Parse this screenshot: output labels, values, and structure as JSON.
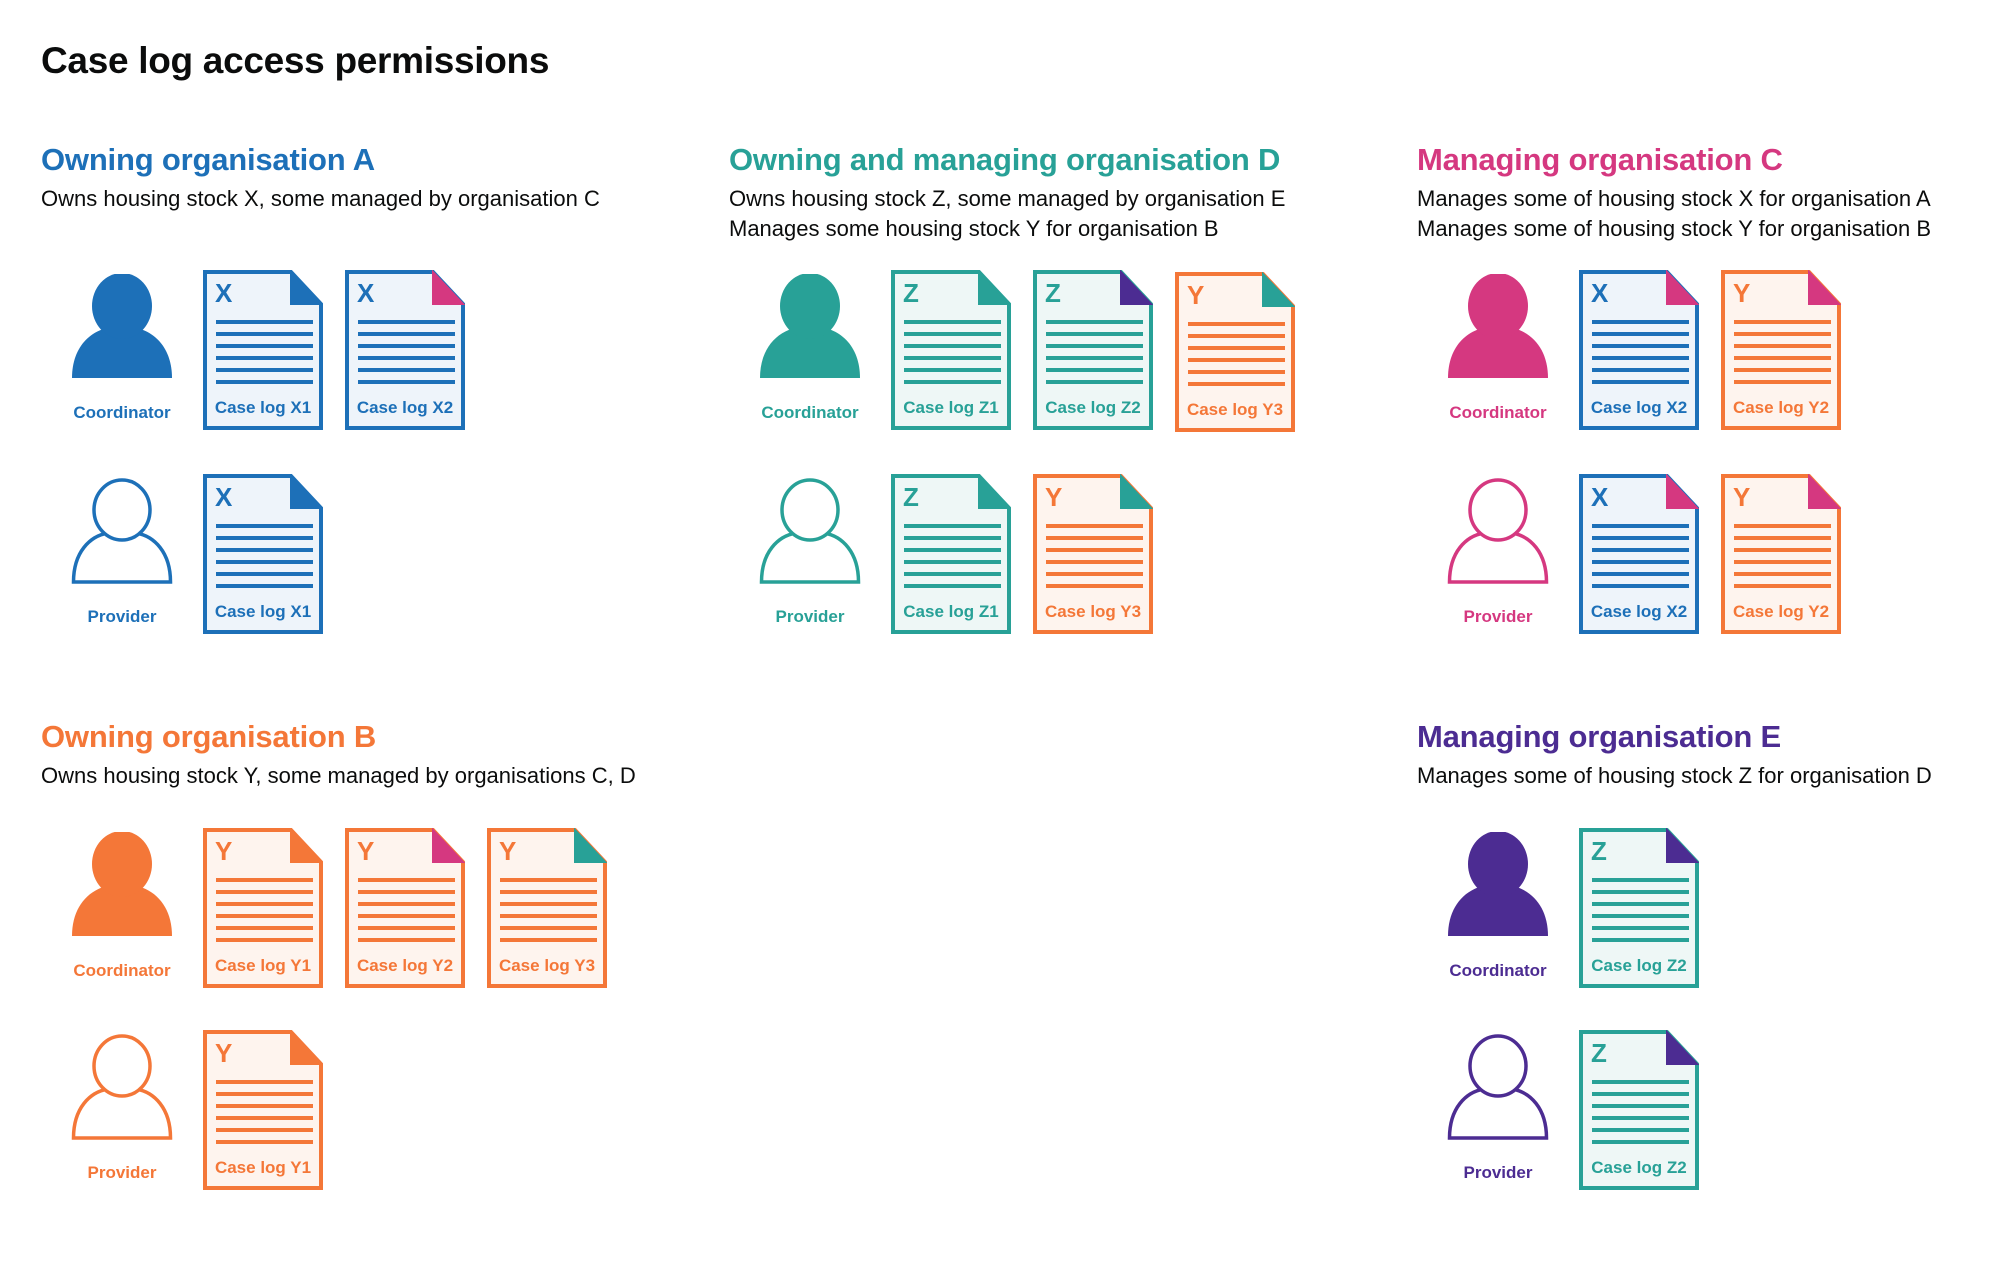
{
  "title": "Case log access permissions",
  "colors": {
    "blue": "#1d70b8",
    "teal": "#28a197",
    "pink": "#d53880",
    "orange": "#f47738",
    "purple": "#4c2c92"
  },
  "stock_colors": {
    "X": "blue",
    "Y": "orange",
    "Z": "teal"
  },
  "sections": [
    {
      "heading": "Owning organisation A",
      "color": "blue",
      "desc": [
        "Owns housing stock X, some managed by organisation C"
      ],
      "roles": [
        {
          "role": "Coordinator",
          "filled": true,
          "docs": [
            {
              "stock": "X",
              "label": "Case log X1",
              "corner": "blue"
            },
            {
              "stock": "X",
              "label": "Case log X2",
              "corner": "pink"
            }
          ]
        },
        {
          "role": "Provider",
          "filled": false,
          "docs": [
            {
              "stock": "X",
              "label": "Case log X1",
              "corner": "blue"
            }
          ]
        }
      ]
    },
    {
      "heading": "Owning and managing organisation D",
      "color": "teal",
      "desc": [
        "Owns housing stock Z, some managed by organisation E",
        "Manages some housing stock Y for organisation B"
      ],
      "roles": [
        {
          "role": "Coordinator",
          "filled": true,
          "docs": [
            {
              "stock": "Z",
              "label": "Case log Z1",
              "corner": "teal"
            },
            {
              "stock": "Z",
              "label": "Case log Z2",
              "corner": "purple"
            },
            {
              "stock": "Y",
              "label": "Case log Y3",
              "corner": "teal"
            }
          ]
        },
        {
          "role": "Provider",
          "filled": false,
          "docs": [
            {
              "stock": "Z",
              "label": "Case log Z1",
              "corner": "teal"
            },
            {
              "stock": "Y",
              "label": "Case log Y3",
              "corner": "teal"
            }
          ]
        }
      ]
    },
    {
      "heading": "Managing organisation C",
      "color": "pink",
      "desc": [
        "Manages some of housing stock X for organisation A",
        "Manages some of housing stock Y for organisation B"
      ],
      "roles": [
        {
          "role": "Coordinator",
          "filled": true,
          "docs": [
            {
              "stock": "X",
              "label": "Case log X2",
              "corner": "pink"
            },
            {
              "stock": "Y",
              "label": "Case log Y2",
              "corner": "pink"
            }
          ]
        },
        {
          "role": "Provider",
          "filled": false,
          "docs": [
            {
              "stock": "X",
              "label": "Case log X2",
              "corner": "pink"
            },
            {
              "stock": "Y",
              "label": "Case log Y2",
              "corner": "pink"
            }
          ]
        }
      ]
    },
    {
      "heading": "Owning organisation B",
      "color": "orange",
      "desc": [
        "Owns housing stock Y, some managed by organisations C, D"
      ],
      "roles": [
        {
          "role": "Coordinator",
          "filled": true,
          "docs": [
            {
              "stock": "Y",
              "label": "Case log Y1",
              "corner": "orange"
            },
            {
              "stock": "Y",
              "label": "Case log Y2",
              "corner": "pink"
            },
            {
              "stock": "Y",
              "label": "Case log Y3",
              "corner": "teal"
            }
          ]
        },
        {
          "role": "Provider",
          "filled": false,
          "docs": [
            {
              "stock": "Y",
              "label": "Case log Y1",
              "corner": "orange"
            }
          ]
        }
      ]
    },
    {
      "heading": "Managing organisation E",
      "color": "purple",
      "desc": [
        "Manages some of housing stock Z for organisation D"
      ],
      "roles": [
        {
          "role": "Coordinator",
          "filled": true,
          "docs": [
            {
              "stock": "Z",
              "label": "Case log Z2",
              "corner": "purple"
            }
          ]
        },
        {
          "role": "Provider",
          "filled": false,
          "docs": [
            {
              "stock": "Z",
              "label": "Case log Z2",
              "corner": "purple"
            }
          ]
        }
      ]
    }
  ]
}
